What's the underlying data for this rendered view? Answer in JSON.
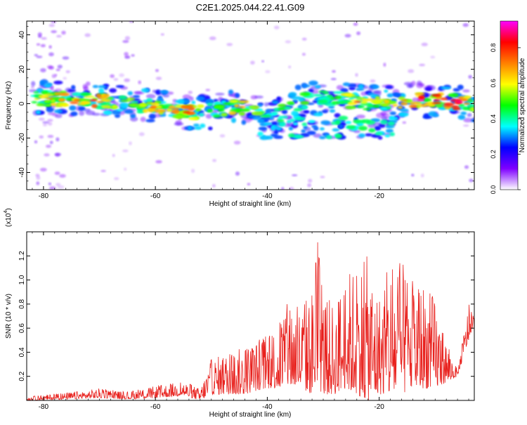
{
  "figure": {
    "title": "C2E1.2025.044.22.41.G09"
  },
  "chart_data": [
    {
      "type": "heatmap",
      "xlabel": "Height of straight line (km)",
      "ylabel": "Frequency (Hz)",
      "xlim": [
        -83,
        -3
      ],
      "ylim": [
        -50,
        48
      ],
      "xticks": [
        -80,
        -60,
        -40,
        -20
      ],
      "yticks": [
        -40,
        -20,
        0,
        20,
        40
      ],
      "colorbar": {
        "label": "Normalized spectral amplitude",
        "range": [
          0,
          0.95
        ],
        "ticks": [
          "0.0",
          "0.2",
          "0.4",
          "0.6",
          "0.8"
        ],
        "tick_values": [
          0,
          0.2,
          0.4,
          0.6,
          0.8
        ],
        "colors": [
          "#ffffff",
          "#7f00ff",
          "#0000ff",
          "#00ffff",
          "#00ff00",
          "#ffff00",
          "#ff8000",
          "#ff0000",
          "#ff00ff"
        ]
      },
      "ridge": {
        "description_free": true,
        "x": [
          -81,
          -78,
          -75,
          -72,
          -69,
          -66,
          -63,
          -60,
          -57,
          -54,
          -51,
          -48,
          -45,
          -42,
          -39,
          -36,
          -33,
          -30,
          -27,
          -24,
          -21,
          -18,
          -15,
          -12,
          -9,
          -6,
          -4
        ],
        "y": [
          3,
          3,
          2,
          2,
          1,
          0,
          -1,
          -2,
          -3,
          -5,
          -5,
          -3,
          -2,
          -5,
          -8,
          -2,
          2,
          4,
          3,
          1,
          0,
          1,
          2,
          2,
          2,
          1,
          0
        ],
        "peak": [
          0.6,
          0.7,
          0.75,
          0.85,
          0.7,
          0.6,
          0.55,
          0.75,
          0.7,
          0.8,
          0.5,
          0.55,
          0.7,
          0.6,
          0.5,
          0.55,
          0.5,
          0.45,
          0.5,
          0.75,
          0.6,
          0.65,
          0.7,
          0.9,
          0.85,
          0.9,
          0.7
        ]
      }
    },
    {
      "type": "line",
      "xlabel": "Height of straight line (km)",
      "ylabel": "SNR (10 * v/v)",
      "yscale_label": "(x10",
      "yscale_exp": "4",
      "yscale_close": ")",
      "xlim": [
        -83,
        -3
      ],
      "ylim": [
        0,
        1.4
      ],
      "xticks": [
        -80,
        -60,
        -40,
        -20
      ],
      "yticks": [
        0.2,
        0.4,
        0.6,
        0.8,
        1.0,
        1.2
      ],
      "ytick_labels": [
        "0.2",
        "0.4",
        "0.6",
        "0.8",
        "1.0",
        "1.2"
      ],
      "color": "#e8201c",
      "envelope": {
        "x": [
          -83,
          -75,
          -70,
          -65,
          -60,
          -55,
          -52,
          -50,
          -47,
          -44,
          -42,
          -40,
          -38,
          -36,
          -34,
          -32,
          -31,
          -30,
          -28,
          -26,
          -24,
          -22,
          -20,
          -18,
          -16,
          -14,
          -12,
          -10,
          -8,
          -6,
          -4,
          -3
        ],
        "max": [
          0.03,
          0.07,
          0.1,
          0.07,
          0.12,
          0.16,
          0.1,
          0.35,
          0.4,
          0.45,
          0.5,
          0.55,
          0.65,
          0.85,
          0.8,
          0.95,
          1.35,
          0.9,
          0.8,
          1.05,
          1.15,
          1.2,
          0.9,
          1.15,
          1.15,
          1.0,
          1.0,
          0.85,
          0.5,
          0.25,
          0.8,
          0.7
        ],
        "min": [
          0.0,
          0.01,
          0.02,
          0.01,
          0.02,
          0.04,
          0.0,
          0.05,
          0.05,
          0.05,
          0.08,
          0.1,
          0.1,
          0.12,
          0.1,
          0.05,
          0.1,
          0.05,
          0.05,
          0.1,
          0.05,
          0.0,
          0.05,
          0.05,
          0.05,
          0.1,
          0.1,
          0.1,
          0.15,
          0.2,
          0.5,
          0.55
        ]
      }
    }
  ]
}
